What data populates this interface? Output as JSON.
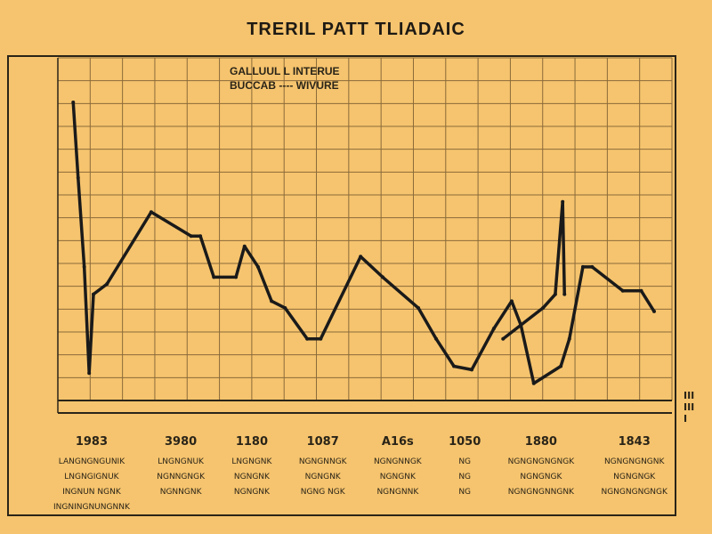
{
  "chart_data": {
    "type": "line",
    "title": "TRERIL PATT TLIADAIC",
    "subtitle": [
      "GALLUUL L INTERUE",
      "BUCCAB ---- WIVURE"
    ],
    "xlim": [
      0,
      100
    ],
    "ylim": [
      0,
      100
    ],
    "grid": true,
    "line_color": "#1a1a1a",
    "series": [
      {
        "values": [
          [
            2.5,
            87
          ],
          [
            3.3,
            65
          ],
          [
            4.3,
            39
          ],
          [
            5.1,
            8
          ],
          [
            5.8,
            31
          ],
          [
            8,
            34
          ],
          [
            15.2,
            55
          ],
          [
            21.7,
            48
          ],
          [
            23.2,
            48
          ],
          [
            25.4,
            36
          ],
          [
            29,
            36
          ],
          [
            30.4,
            45
          ],
          [
            32.6,
            39
          ],
          [
            34.8,
            29
          ],
          [
            37,
            27
          ],
          [
            40.6,
            18
          ],
          [
            42.8,
            18
          ],
          [
            49.3,
            42
          ],
          [
            52.9,
            36
          ],
          [
            58.7,
            27
          ],
          [
            61.6,
            18
          ],
          [
            64.5,
            10
          ],
          [
            67.4,
            9
          ],
          [
            71,
            21
          ],
          [
            73.9,
            29
          ],
          [
            75.4,
            22
          ],
          [
            77.5,
            5
          ],
          [
            81.9,
            10
          ],
          [
            83.3,
            18
          ],
          [
            85.5,
            39
          ],
          [
            87,
            39
          ],
          [
            92,
            32
          ],
          [
            95,
            32
          ],
          [
            97.1,
            26
          ]
        ]
      },
      {
        "values": [
          [
            72.5,
            18
          ],
          [
            79,
            27
          ],
          [
            81,
            31
          ],
          [
            82.2,
            58
          ],
          [
            82.5,
            31
          ]
        ]
      }
    ]
  },
  "table": {
    "columns": [
      {
        "header": "1983",
        "rows": [
          "LANGNGNGUNIK",
          "LNGNGIGNUK",
          "INGNUN NGNK",
          "INGNINGNUNGNNK"
        ]
      },
      {
        "header": "3980",
        "rows": [
          "LNGNGNUK",
          "NGNNGNGK",
          "NGNNGNK"
        ]
      },
      {
        "header": "1180",
        "rows": [
          "LNGNGNK",
          "NGNGNK",
          "NGNGNK"
        ]
      },
      {
        "header": "1087",
        "rows": [
          "NGNGNNGK",
          "NGNGNK",
          "NGNG NGK"
        ]
      },
      {
        "header": "A16s",
        "rows": [
          "NGNGNNGK",
          "NGNGNK",
          "NGNGNNK"
        ]
      },
      {
        "header": "1050",
        "rows": [
          "NG",
          "NG",
          "NG"
        ]
      },
      {
        "header": "1880",
        "rows": [
          "NGNGNGNGNGK",
          "NGNGNGK",
          "NGNGNGNNGNK"
        ]
      },
      {
        "header": "1843",
        "rows": [
          "NGNGNGNGNK",
          "NGNGNGK",
          "NGNGNGNGNGK"
        ]
      }
    ]
  },
  "side_label": "IIIIIII"
}
